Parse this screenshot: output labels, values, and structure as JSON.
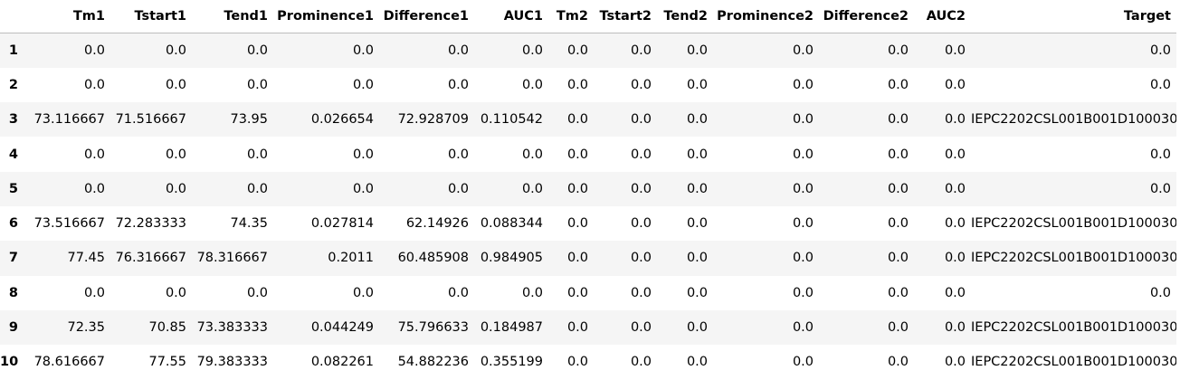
{
  "columns": [
    "",
    "Tm1",
    "Tstart1",
    "Tend1",
    "Prominence1",
    "Difference1",
    "AUC1",
    "Tm2",
    "Tstart2",
    "Tend2",
    "Prominence2",
    "Difference2",
    "AUC2",
    "Target"
  ],
  "rows": [
    {
      "index": "1",
      "cells": [
        "0.0",
        "0.0",
        "0.0",
        "0.0",
        "0.0",
        "0.0",
        "0.0",
        "0.0",
        "0.0",
        "0.0",
        "0.0",
        "0.0",
        "0.0"
      ]
    },
    {
      "index": "2",
      "cells": [
        "0.0",
        "0.0",
        "0.0",
        "0.0",
        "0.0",
        "0.0",
        "0.0",
        "0.0",
        "0.0",
        "0.0",
        "0.0",
        "0.0",
        "0.0"
      ]
    },
    {
      "index": "3",
      "cells": [
        "73.116667",
        "71.516667",
        "73.95",
        "0.026654",
        "72.928709",
        "0.110542",
        "0.0",
        "0.0",
        "0.0",
        "0.0",
        "0.0",
        "0.0",
        "IEPC2202CSL001B001D100030"
      ]
    },
    {
      "index": "4",
      "cells": [
        "0.0",
        "0.0",
        "0.0",
        "0.0",
        "0.0",
        "0.0",
        "0.0",
        "0.0",
        "0.0",
        "0.0",
        "0.0",
        "0.0",
        "0.0"
      ]
    },
    {
      "index": "5",
      "cells": [
        "0.0",
        "0.0",
        "0.0",
        "0.0",
        "0.0",
        "0.0",
        "0.0",
        "0.0",
        "0.0",
        "0.0",
        "0.0",
        "0.0",
        "0.0"
      ]
    },
    {
      "index": "6",
      "cells": [
        "73.516667",
        "72.283333",
        "74.35",
        "0.027814",
        "62.14926",
        "0.088344",
        "0.0",
        "0.0",
        "0.0",
        "0.0",
        "0.0",
        "0.0",
        "IEPC2202CSL001B001D100030"
      ]
    },
    {
      "index": "7",
      "cells": [
        "77.45",
        "76.316667",
        "78.316667",
        "0.2011",
        "60.485908",
        "0.984905",
        "0.0",
        "0.0",
        "0.0",
        "0.0",
        "0.0",
        "0.0",
        "IEPC2202CSL001B001D100030"
      ]
    },
    {
      "index": "8",
      "cells": [
        "0.0",
        "0.0",
        "0.0",
        "0.0",
        "0.0",
        "0.0",
        "0.0",
        "0.0",
        "0.0",
        "0.0",
        "0.0",
        "0.0",
        "0.0"
      ]
    },
    {
      "index": "9",
      "cells": [
        "72.35",
        "70.85",
        "73.383333",
        "0.044249",
        "75.796633",
        "0.184987",
        "0.0",
        "0.0",
        "0.0",
        "0.0",
        "0.0",
        "0.0",
        "IEPC2202CSL001B001D100030"
      ]
    },
    {
      "index": "10",
      "cells": [
        "78.616667",
        "77.55",
        "79.383333",
        "0.082261",
        "54.882236",
        "0.355199",
        "0.0",
        "0.0",
        "0.0",
        "0.0",
        "0.0",
        "0.0",
        "IEPC2202CSL001B001D100030"
      ]
    }
  ],
  "colors": {
    "row_stripe": "#f5f5f5",
    "header_border": "#bdbdbd"
  }
}
